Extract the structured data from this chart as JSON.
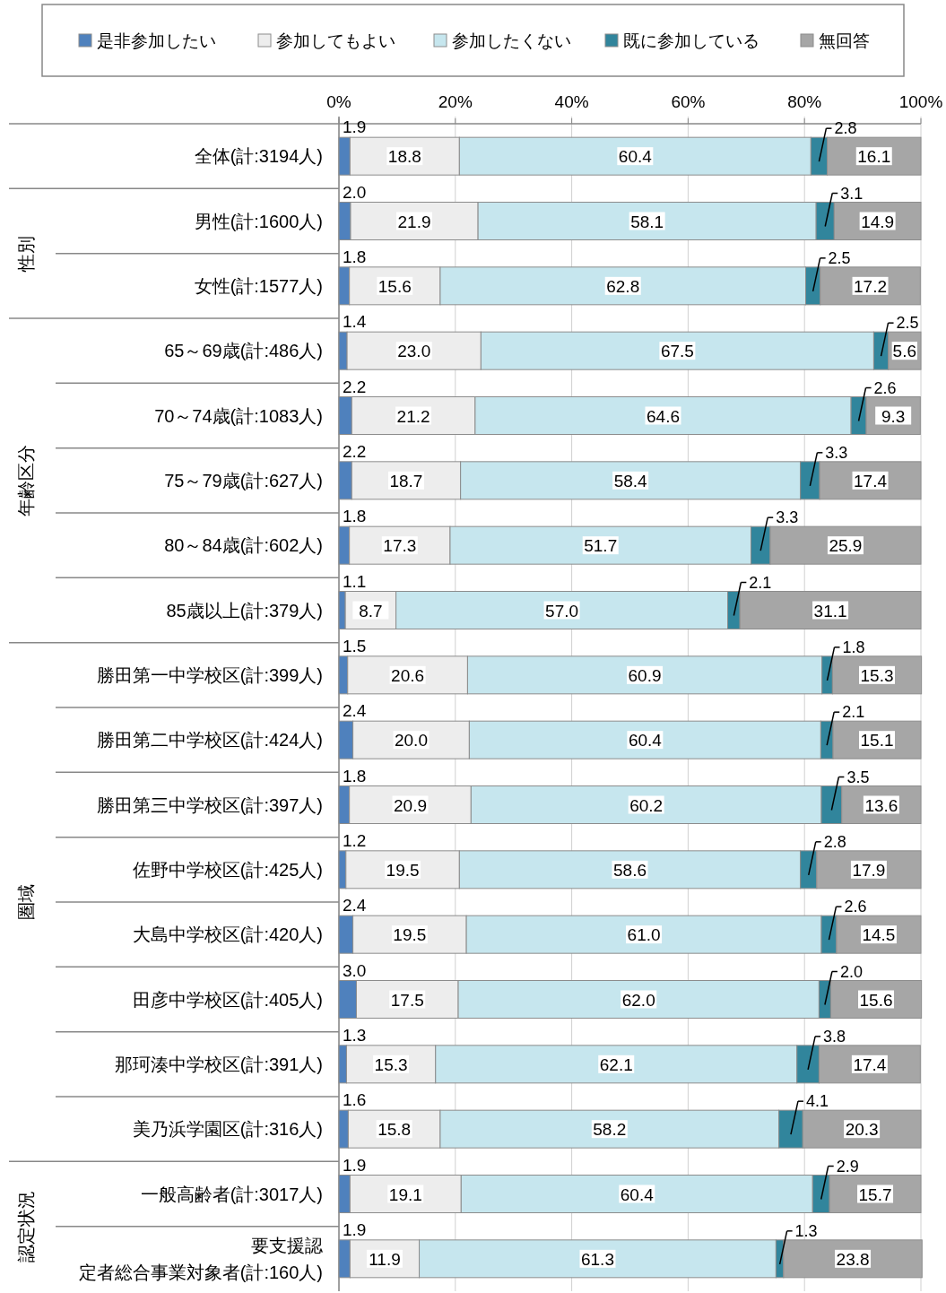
{
  "chart_data": {
    "type": "bar",
    "orientation": "horizontal",
    "stacked": true,
    "grid": "x",
    "legend": "top",
    "categories": [
      "全体(計:3194人)",
      "男性(計:1600人)",
      "女性(計:1577人)",
      "65～69歳(計:486人)",
      "70～74歳(計:1083人)",
      "75～79歳(計:627人)",
      "80～84歳(計:602人)",
      "85歳以上(計:379人)",
      "勝田第一中学校区(計:399人)",
      "勝田第二中学校区(計:424人)",
      "勝田第三中学校区(計:397人)",
      "佐野中学校区(計:425人)",
      "大島中学校区(計:420人)",
      "田彦中学校区(計:405人)",
      "那珂湊中学校区(計:391人)",
      "美乃浜学園区(計:316人)",
      "一般高齢者(計:3017人)",
      "要支援認定者総合事業対象者(計:160人)"
    ],
    "xlim": [
      0,
      100
    ],
    "xticks": [
      {
        "value": 0,
        "label": "0%"
      },
      {
        "value": 20,
        "label": "20%"
      },
      {
        "value": 40,
        "label": "40%"
      },
      {
        "value": 60,
        "label": "60%"
      },
      {
        "value": 80,
        "label": "80%"
      },
      {
        "value": 100,
        "label": "100%"
      }
    ],
    "annotations": [
      "性別",
      "年齢区分",
      "圏域",
      "認定状況"
    ],
    "series": [
      {
        "name": "是非参加したい",
        "color": "#4f81bd",
        "values": [
          1.9,
          2.0,
          1.8,
          1.4,
          2.2,
          2.2,
          1.8,
          1.1,
          1.5,
          2.4,
          1.8,
          1.2,
          2.4,
          3.0,
          1.3,
          1.6,
          1.9,
          1.9
        ],
        "value_labels": [
          "1.9",
          "2.0",
          "1.8",
          "1.4",
          "2.2",
          "2.2",
          "1.8",
          "1.1",
          "1.5",
          "2.4",
          "1.8",
          "1.2",
          "2.4",
          "3.0",
          "1.3",
          "1.6",
          "1.9",
          "1.9"
        ]
      },
      {
        "name": "参加してもよい",
        "color": "#ededed",
        "values": [
          18.8,
          21.9,
          15.6,
          23.0,
          21.2,
          18.7,
          17.3,
          8.7,
          20.6,
          20.0,
          20.9,
          19.5,
          19.5,
          17.5,
          15.3,
          15.8,
          19.1,
          11.9
        ],
        "value_labels": [
          "18.8",
          "21.9",
          "15.6",
          "23.0",
          "21.2",
          "18.7",
          "17.3",
          "8.7",
          "20.6",
          "20.0",
          "20.9",
          "19.5",
          "19.5",
          "17.5",
          "15.3",
          "15.8",
          "19.1",
          "11.9"
        ]
      },
      {
        "name": "参加したくない",
        "color": "#c6e6ee",
        "values": [
          60.4,
          58.1,
          62.8,
          67.5,
          64.6,
          58.4,
          51.7,
          57.0,
          60.9,
          60.4,
          60.2,
          58.6,
          61.0,
          62.0,
          62.1,
          58.2,
          60.4,
          61.3
        ],
        "value_labels": [
          "60.4",
          "58.1",
          "62.8",
          "67.5",
          "64.6",
          "58.4",
          "51.7",
          "57.0",
          "60.9",
          "60.4",
          "60.2",
          "58.6",
          "61.0",
          "62.0",
          "62.1",
          "58.2",
          "60.4",
          "61.3"
        ]
      },
      {
        "name": "既に参加している",
        "color": "#31859c",
        "values": [
          2.8,
          3.1,
          2.5,
          2.5,
          2.6,
          3.3,
          3.3,
          2.1,
          1.8,
          2.1,
          3.5,
          2.8,
          2.6,
          2.0,
          3.8,
          4.1,
          2.9,
          1.3
        ],
        "value_labels": [
          "2.8",
          "3.1",
          "2.5",
          "2.5",
          "2.6",
          "3.3",
          "3.3",
          "2.1",
          "1.8",
          "2.1",
          "3.5",
          "2.8",
          "2.6",
          "2.0",
          "3.8",
          "4.1",
          "2.9",
          "1.3"
        ]
      },
      {
        "name": "無回答",
        "color": "#a6a6a6",
        "values": [
          16.1,
          14.9,
          17.2,
          5.6,
          9.3,
          17.4,
          25.9,
          31.1,
          15.3,
          15.1,
          13.6,
          17.9,
          14.5,
          15.6,
          17.4,
          20.3,
          15.7,
          23.8
        ],
        "value_labels": [
          "16.1",
          "14.9",
          "17.2",
          "5.6",
          "9.3",
          "17.4",
          "25.9",
          "31.1",
          "15.3",
          "15.1",
          "13.6",
          "17.9",
          "14.5",
          "15.6",
          "17.4",
          "20.3",
          "15.7",
          "23.8"
        ]
      }
    ]
  }
}
